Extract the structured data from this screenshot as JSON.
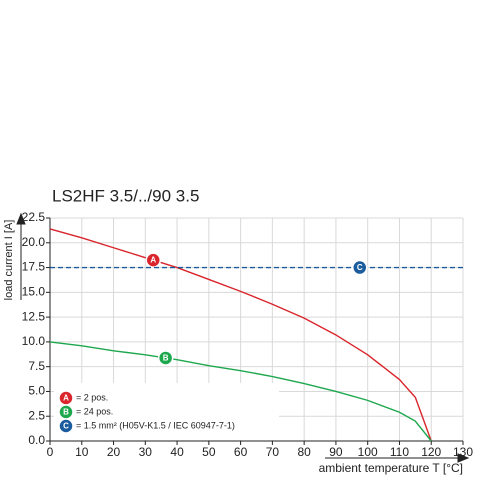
{
  "chart_data": {
    "type": "line",
    "title": "LS2HF 3.5/../90 3.5",
    "x_label": "ambient temperature T [°C]",
    "y_label": "load current I [A]",
    "xlim": [
      0,
      130
    ],
    "ylim": [
      0,
      22.5
    ],
    "xticks": [
      0,
      10,
      20,
      30,
      40,
      50,
      60,
      70,
      80,
      90,
      100,
      110,
      120,
      130
    ],
    "yticks": [
      {
        "value": 0,
        "label": "0.0"
      },
      {
        "value": 2.5,
        "label": "2.5"
      },
      {
        "value": 5,
        "label": "5.0"
      },
      {
        "value": 7.5,
        "label": "7.5"
      },
      {
        "value": 10,
        "label": "10.0"
      },
      {
        "value": 12.5,
        "label": "12.5"
      },
      {
        "value": 15,
        "label": "15.0"
      },
      {
        "value": 17.5,
        "label": "17.5"
      },
      {
        "value": 20,
        "label": "20.0"
      },
      {
        "value": 22.5,
        "label": "22.5"
      }
    ],
    "grid": true,
    "series": [
      {
        "badge": "A",
        "name": "= 2 pos.",
        "color": "#d9252b",
        "style": "solid",
        "x": [
          0,
          10,
          20,
          30,
          40,
          50,
          60,
          70,
          80,
          90,
          100,
          110,
          115,
          120
        ],
        "values": [
          21.4,
          20.5,
          19.5,
          18.5,
          17.5,
          16.3,
          15.1,
          13.8,
          12.4,
          10.7,
          8.7,
          6.2,
          4.4,
          0
        ]
      },
      {
        "badge": "B",
        "name": "= 24 pos.",
        "color": "#1ea84e",
        "style": "solid",
        "x": [
          0,
          10,
          20,
          30,
          40,
          50,
          60,
          70,
          80,
          90,
          100,
          110,
          115,
          120
        ],
        "values": [
          10.0,
          9.6,
          9.1,
          8.7,
          8.2,
          7.6,
          7.1,
          6.5,
          5.8,
          5.0,
          4.1,
          2.9,
          2.0,
          0
        ]
      },
      {
        "badge": "C",
        "name": "= 1.5 mm² (H05V-K1.5 / IEC 60947-7-1)",
        "color": "#1a5c9e",
        "style": "dashed",
        "x": [
          0,
          130
        ],
        "values": [
          17.5,
          17.5
        ]
      }
    ]
  }
}
